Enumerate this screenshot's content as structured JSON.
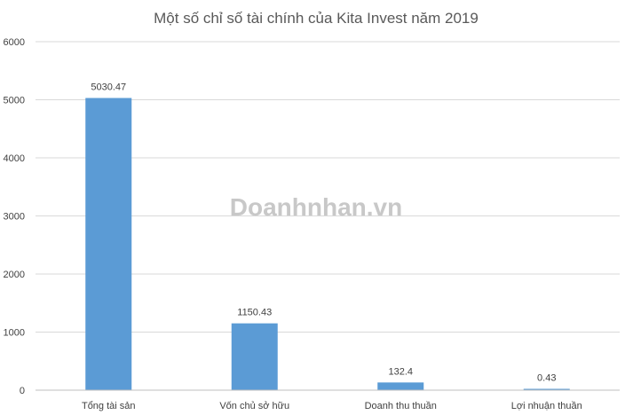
{
  "chart_data": {
    "type": "bar",
    "title": "Một số chỉ số tài chính của Kita Invest năm 2019",
    "categories": [
      "Tổng tài sản",
      "Vốn chủ sở hữu",
      "Doanh thu thuần",
      "Lợi nhuận thuần"
    ],
    "values": [
      5030.47,
      1150.43,
      132.4,
      0.43
    ],
    "data_labels": [
      "5030.47",
      "1150.43",
      "132.4",
      "0.43"
    ],
    "ylim": [
      0,
      6000
    ],
    "yticks": [
      "0",
      "1000",
      "2000",
      "3000",
      "4000",
      "5000",
      "6000"
    ],
    "grid": true,
    "legend": "none",
    "bar_color": "#5b9bd5"
  },
  "watermark": {
    "text": "Doanhnhan.vn",
    "color": "#c8c8c8",
    "accent_color": "#e8352b"
  }
}
